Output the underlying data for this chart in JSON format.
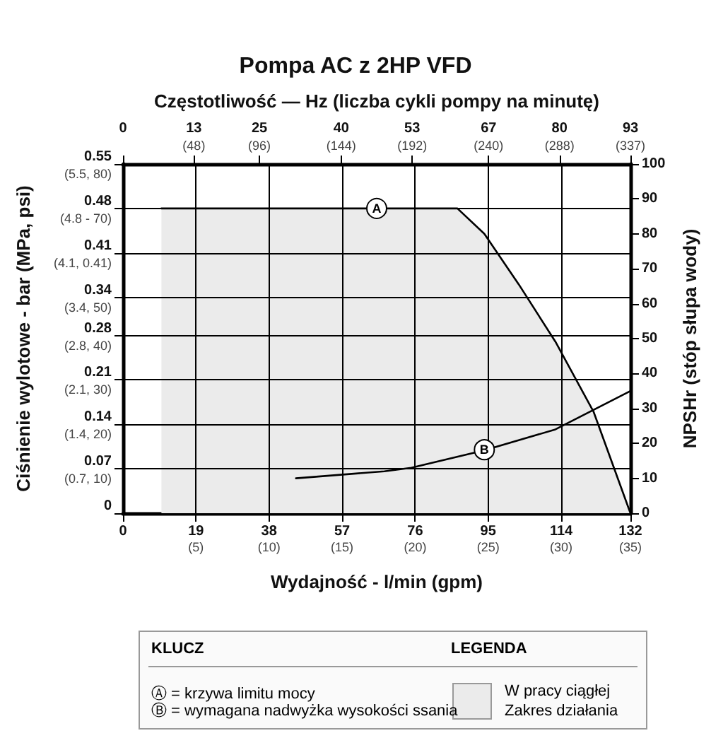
{
  "chart_data": {
    "type": "line",
    "title": "Pompa AC z 2HP VFD",
    "xlabel": "Wydajność - l/min (gpm)",
    "ylabel": "Ciśnienie wylotowe - bar (MPa, psi)",
    "y2label": "NPSHr (stóp słupa wody)",
    "x2label": "Częstotliwość — Hz (liczba cykli pompy na minutę)",
    "xlim": [
      0,
      132
    ],
    "xticks": [
      0,
      19,
      38,
      57,
      76,
      95,
      114,
      132
    ],
    "x2lim": [
      0,
      93
    ],
    "x2ticks": [
      0,
      13,
      25,
      40,
      53,
      67,
      80,
      93
    ],
    "ylim": [
      0,
      0.55
    ],
    "yticks": [
      0,
      0.07,
      0.14,
      0.21,
      0.28,
      0.34,
      0.41,
      0.48,
      0.55
    ],
    "y2lim": [
      0,
      100
    ],
    "y2ticks": [
      0,
      10,
      20,
      30,
      40,
      50,
      60,
      70,
      80,
      90,
      100
    ],
    "grid": true,
    "series": [
      {
        "type": "area",
        "color": "#ebebeb",
        "x": [
          10,
          87,
          94,
          103,
          112.5,
          122.4,
          132
        ],
        "values": [
          0.48,
          0.48,
          0.44,
          0.36,
          0.27,
          0.16,
          0
        ]
      },
      {
        "color": "#000000",
        "axis": "y2",
        "x": [
          45,
          68,
          75,
          94,
          112.5,
          132
        ],
        "values": [
          10,
          12,
          13,
          18,
          24,
          35
        ]
      }
    ],
    "annotations": [
      {
        "text": "A",
        "x": 66,
        "y": 0.48
      },
      {
        "text": "B",
        "x": 94,
        "y": 0.1
      },
      "KLUCZ",
      "LEGENDA",
      "Ⓐ = krzywa limitu mocy",
      "Ⓑ = wymagana nadwyżka wysokości ssania",
      "W pracy ciągłej",
      "Zakres działania",
      "(5)",
      "(10)",
      "(15)",
      "(20)",
      "(25)",
      "(30)",
      "(35)",
      "(48)",
      "(96)",
      "(144)",
      "(192)",
      "(240)",
      "(288)",
      "(337)",
      "(0.7, 10)",
      "(1.4, 20)",
      "(2.1, 30)",
      "(2.8, 40)",
      "(3.4, 50)",
      "(4.1, 0.41)",
      "(4.8 - 70)",
      "(5.5, 80)"
    ]
  }
}
